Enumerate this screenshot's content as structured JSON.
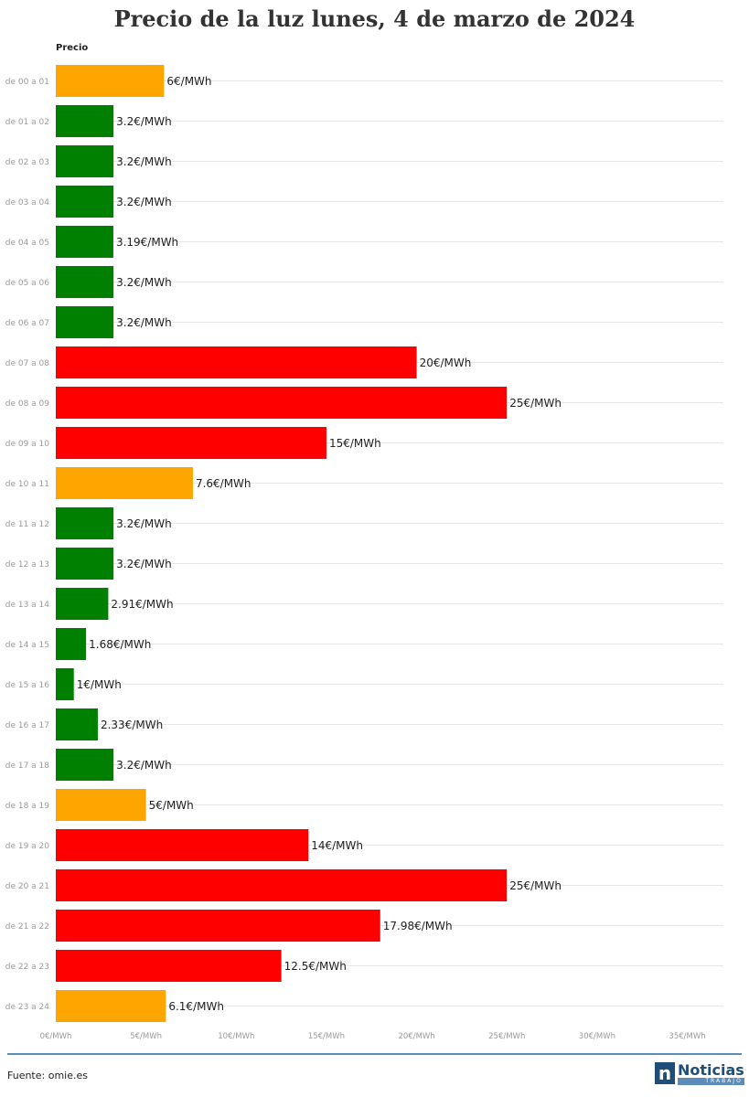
{
  "chart_data": {
    "type": "bar",
    "orientation": "horizontal",
    "title": "Precio de la luz lunes, 4 de marzo de 2024",
    "series_label": "Precio",
    "unit_suffix": "€/MWh",
    "categories": [
      "de 00 a 01",
      "de 01 a 02",
      "de 02 a 03",
      "de 03 a 04",
      "de 04 a 05",
      "de 05 a 06",
      "de 06 a 07",
      "de 07 a 08",
      "de 08 a 09",
      "de 09 a 10",
      "de 10 a 11",
      "de 11 a 12",
      "de 12 a 13",
      "de 13 a 14",
      "de 14 a 15",
      "de 15 a 16",
      "de 16 a 17",
      "de 17 a 18",
      "de 18 a 19",
      "de 19 a 20",
      "de 20 a 21",
      "de 21 a 22",
      "de 22 a 23",
      "de 23 a 24"
    ],
    "values": [
      6,
      3.2,
      3.2,
      3.2,
      3.19,
      3.2,
      3.2,
      20,
      25,
      15,
      7.6,
      3.2,
      3.2,
      2.91,
      1.68,
      1,
      2.33,
      3.2,
      5,
      14,
      25,
      17.98,
      12.5,
      6.1
    ],
    "value_labels": [
      "6€/MWh",
      "3.2€/MWh",
      "3.2€/MWh",
      "3.2€/MWh",
      "3.19€/MWh",
      "3.2€/MWh",
      "3.2€/MWh",
      "20€/MWh",
      "25€/MWh",
      "15€/MWh",
      "7.6€/MWh",
      "3.2€/MWh",
      "3.2€/MWh",
      "2.91€/MWh",
      "1.68€/MWh",
      "1€/MWh",
      "2.33€/MWh",
      "3.2€/MWh",
      "5€/MWh",
      "14€/MWh",
      "25€/MWh",
      "17.98€/MWh",
      "12.5€/MWh",
      "6.1€/MWh"
    ],
    "bar_colors": [
      "#ffa500",
      "#008000",
      "#008000",
      "#008000",
      "#008000",
      "#008000",
      "#008000",
      "#ff0000",
      "#ff0000",
      "#ff0000",
      "#ffa500",
      "#008000",
      "#008000",
      "#008000",
      "#008000",
      "#008000",
      "#008000",
      "#008000",
      "#ffa500",
      "#ff0000",
      "#ff0000",
      "#ff0000",
      "#ff0000",
      "#ffa500"
    ],
    "xlim": [
      0,
      37
    ],
    "x_ticks": [
      0,
      5,
      10,
      15,
      20,
      25,
      30,
      35
    ],
    "x_tick_labels": [
      "0€/MWh",
      "5€/MWh",
      "10€/MWh",
      "15€/MWh",
      "20€/MWh",
      "25€/MWh",
      "30€/MWh",
      "35€/MWh"
    ],
    "grid": true,
    "legend": "none"
  },
  "footer": {
    "source": "Fuente: omie.es",
    "logo_letter": "n",
    "logo_name": "Noticias",
    "logo_sub": "TRABAJO"
  }
}
